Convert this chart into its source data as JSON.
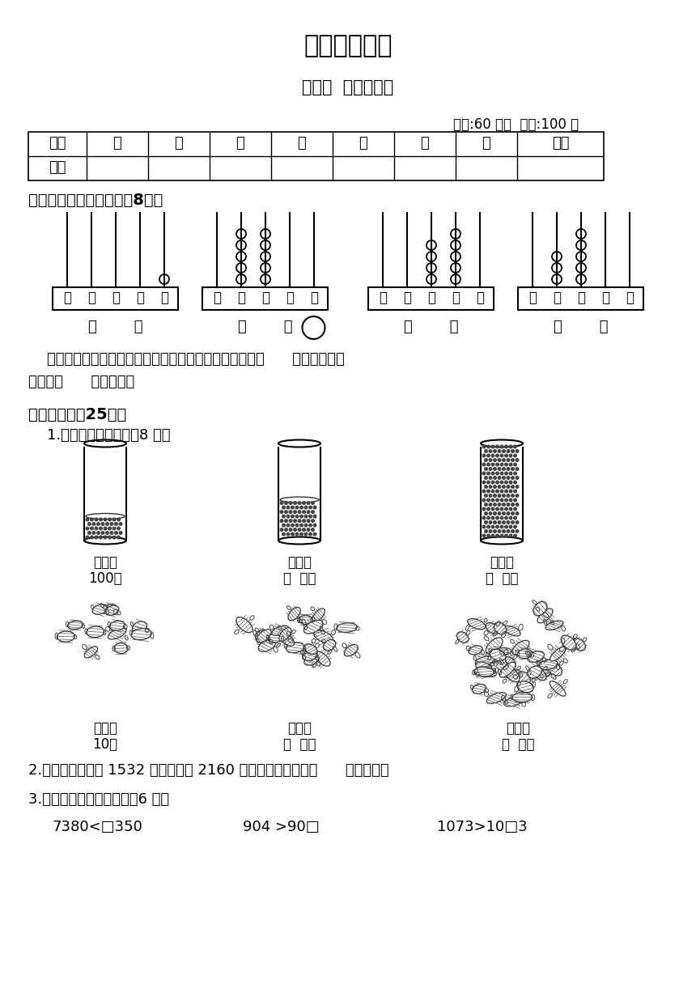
{
  "title": "第五周测试卷",
  "subtitle": "比一比  有多少个字",
  "time_info": "时间:60 分钟  满分:100 分",
  "table_headers": [
    "题号",
    "一",
    "二",
    "三",
    "四",
    "五",
    "六",
    "七",
    "总分"
  ],
  "table_row2": [
    "得分",
    "",
    "",
    "",
    "",
    "",
    "",
    "",
    ""
  ],
  "section1_title": "一、填一填，比一比。（8分）",
  "abacus_bead_configs": [
    [
      0,
      0,
      0,
      0,
      1
    ],
    [
      0,
      5,
      5,
      0,
      0
    ],
    [
      0,
      0,
      4,
      5,
      0
    ],
    [
      0,
      3,
      5,
      0,
      0
    ]
  ],
  "section1_note1": "    发现：比较两个数的大小，位数不相同的，位数多的数（      ）；位数相同",
  "section1_note2": "的，从（      ）位比起。",
  "section2_title": "二、填空。（25分）",
  "sub1_title": "    1.估一估，填一填。（8 分）",
  "jar_labels_line1": [
    "大约有",
    "大约有",
    "大约有"
  ],
  "jar_labels_line2": [
    "100粒",
    "（  ）粒",
    "（  ）粒"
  ],
  "candy_labels_line1": [
    "大约有",
    "大约有",
    "大约有"
  ],
  "candy_labels_line2": [
    "10块",
    "（  ）块",
    "（  ）块"
  ],
  "q2_text": "2.五岳中的泰山高 1532 米，华山高 2160 米。这两座山中，（      ）比较高。",
  "q3_title": "3.在口里填上合适的数。（6 分）",
  "q3_items": [
    "7380<□350",
    "904 >90□",
    "1073>10□3"
  ],
  "bg_color": "#ffffff",
  "text_color": "#000000"
}
